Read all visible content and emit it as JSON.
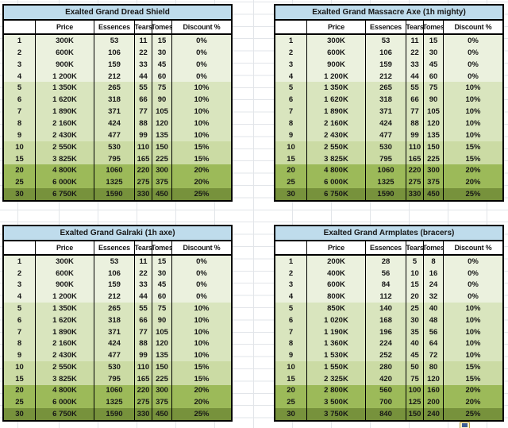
{
  "app": {
    "background": "#FFFFFF",
    "gridline_color": "#E2E5E9",
    "title_bg": "#BFDCEC",
    "border_color": "#000000"
  },
  "columns": [
    "",
    "Price",
    "Essences",
    "Tears",
    "Tomes",
    "Discount %"
  ],
  "discount_colors": {
    "0%": "#EBF1DE",
    "10%": "#D9E5BE",
    "15%": "#CBDBA4",
    "20%": "#9CBA59",
    "25%": "#77923C"
  },
  "tables": [
    {
      "title": "Exalted Grand Dread Shield",
      "rows": [
        [
          "1",
          "300K",
          "53",
          "11",
          "15",
          "0%"
        ],
        [
          "2",
          "600K",
          "106",
          "22",
          "30",
          "0%"
        ],
        [
          "3",
          "900K",
          "159",
          "33",
          "45",
          "0%"
        ],
        [
          "4",
          "1 200K",
          "212",
          "44",
          "60",
          "0%"
        ],
        [
          "5",
          "1 350K",
          "265",
          "55",
          "75",
          "10%"
        ],
        [
          "6",
          "1 620K",
          "318",
          "66",
          "90",
          "10%"
        ],
        [
          "7",
          "1 890K",
          "371",
          "77",
          "105",
          "10%"
        ],
        [
          "8",
          "2 160K",
          "424",
          "88",
          "120",
          "10%"
        ],
        [
          "9",
          "2 430K",
          "477",
          "99",
          "135",
          "10%"
        ],
        [
          "10",
          "2 550K",
          "530",
          "110",
          "150",
          "15%"
        ],
        [
          "15",
          "3 825K",
          "795",
          "165",
          "225",
          "15%"
        ],
        [
          "20",
          "4 800K",
          "1060",
          "220",
          "300",
          "20%"
        ],
        [
          "25",
          "6 000K",
          "1325",
          "275",
          "375",
          "20%"
        ],
        [
          "30",
          "6 750K",
          "1590",
          "330",
          "450",
          "25%"
        ]
      ]
    },
    {
      "title": "Exalted Grand Massacre Axe (1h mighty)",
      "rows": [
        [
          "1",
          "300K",
          "53",
          "11",
          "15",
          "0%"
        ],
        [
          "2",
          "600K",
          "106",
          "22",
          "30",
          "0%"
        ],
        [
          "3",
          "900K",
          "159",
          "33",
          "45",
          "0%"
        ],
        [
          "4",
          "1 200K",
          "212",
          "44",
          "60",
          "0%"
        ],
        [
          "5",
          "1 350K",
          "265",
          "55",
          "75",
          "10%"
        ],
        [
          "6",
          "1 620K",
          "318",
          "66",
          "90",
          "10%"
        ],
        [
          "7",
          "1 890K",
          "371",
          "77",
          "105",
          "10%"
        ],
        [
          "8",
          "2 160K",
          "424",
          "88",
          "120",
          "10%"
        ],
        [
          "9",
          "2 430K",
          "477",
          "99",
          "135",
          "10%"
        ],
        [
          "10",
          "2 550K",
          "530",
          "110",
          "150",
          "15%"
        ],
        [
          "15",
          "3 825K",
          "795",
          "165",
          "225",
          "15%"
        ],
        [
          "20",
          "4 800K",
          "1060",
          "220",
          "300",
          "20%"
        ],
        [
          "25",
          "6 000K",
          "1325",
          "275",
          "375",
          "20%"
        ],
        [
          "30",
          "6 750K",
          "1590",
          "330",
          "450",
          "25%"
        ]
      ]
    },
    {
      "title": "Exalted Grand Galraki (1h axe)",
      "rows": [
        [
          "1",
          "300K",
          "53",
          "11",
          "15",
          "0%"
        ],
        [
          "2",
          "600K",
          "106",
          "22",
          "30",
          "0%"
        ],
        [
          "3",
          "900K",
          "159",
          "33",
          "45",
          "0%"
        ],
        [
          "4",
          "1 200K",
          "212",
          "44",
          "60",
          "0%"
        ],
        [
          "5",
          "1 350K",
          "265",
          "55",
          "75",
          "10%"
        ],
        [
          "6",
          "1 620K",
          "318",
          "66",
          "90",
          "10%"
        ],
        [
          "7",
          "1 890K",
          "371",
          "77",
          "105",
          "10%"
        ],
        [
          "8",
          "2 160K",
          "424",
          "88",
          "120",
          "10%"
        ],
        [
          "9",
          "2 430K",
          "477",
          "99",
          "135",
          "10%"
        ],
        [
          "10",
          "2 550K",
          "530",
          "110",
          "150",
          "15%"
        ],
        [
          "15",
          "3 825K",
          "795",
          "165",
          "225",
          "15%"
        ],
        [
          "20",
          "4 800K",
          "1060",
          "220",
          "300",
          "20%"
        ],
        [
          "25",
          "6 000K",
          "1325",
          "275",
          "375",
          "20%"
        ],
        [
          "30",
          "6 750K",
          "1590",
          "330",
          "450",
          "25%"
        ]
      ]
    },
    {
      "title": "Exalted Grand Armplates (bracers)",
      "rows": [
        [
          "1",
          "200K",
          "28",
          "5",
          "8",
          "0%"
        ],
        [
          "2",
          "400K",
          "56",
          "10",
          "16",
          "0%"
        ],
        [
          "3",
          "600K",
          "84",
          "15",
          "24",
          "0%"
        ],
        [
          "4",
          "800K",
          "112",
          "20",
          "32",
          "0%"
        ],
        [
          "5",
          "850K",
          "140",
          "25",
          "40",
          "10%"
        ],
        [
          "6",
          "1 020K",
          "168",
          "30",
          "48",
          "10%"
        ],
        [
          "7",
          "1 190K",
          "196",
          "35",
          "56",
          "10%"
        ],
        [
          "8",
          "1 360K",
          "224",
          "40",
          "64",
          "10%"
        ],
        [
          "9",
          "1 530K",
          "252",
          "45",
          "72",
          "10%"
        ],
        [
          "10",
          "1 550K",
          "280",
          "50",
          "80",
          "15%"
        ],
        [
          "15",
          "2 325K",
          "420",
          "75",
          "120",
          "15%"
        ],
        [
          "20",
          "2 800K",
          "560",
          "100",
          "160",
          "20%"
        ],
        [
          "25",
          "3 500K",
          "700",
          "125",
          "200",
          "20%"
        ],
        [
          "30",
          "3 750K",
          "840",
          "150",
          "240",
          "25%"
        ]
      ]
    }
  ]
}
